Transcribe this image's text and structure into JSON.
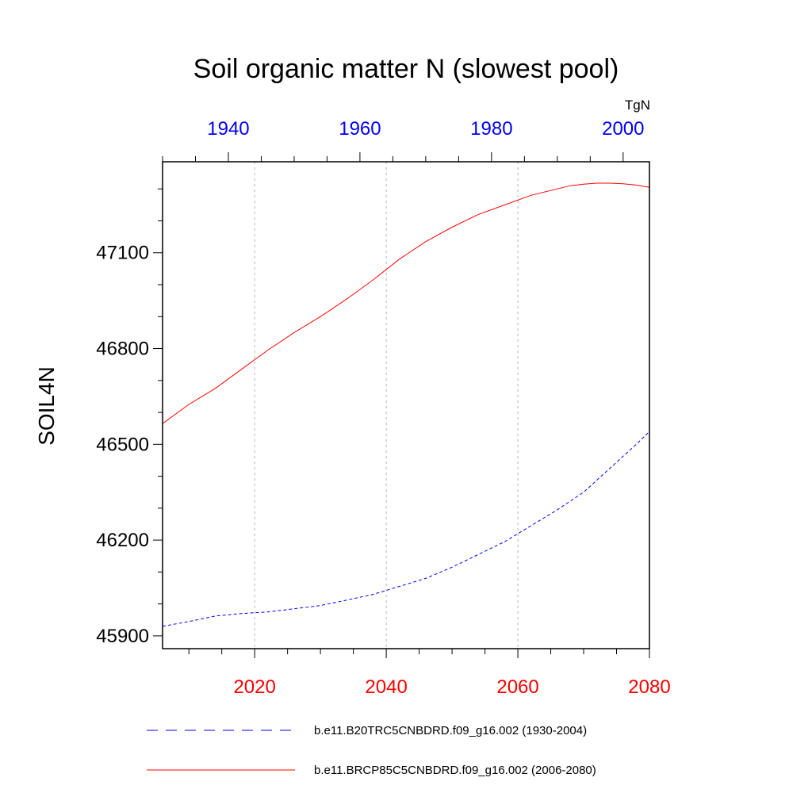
{
  "chart_data": {
    "type": "line",
    "title": "Soil organic matter N (slowest pool)",
    "units": "TgN",
    "ylabel": "SOIL4N",
    "ylim": [
      45860,
      47385
    ],
    "yticks": [
      45900,
      46200,
      46500,
      46800,
      47100
    ],
    "y_minor_step": 100,
    "bottom_axis": {
      "range": [
        2006,
        2080
      ],
      "ticks": [
        2020,
        2040,
        2060,
        2080
      ],
      "minor_step": 5,
      "color": "#ff0000"
    },
    "top_axis": {
      "range": [
        1930,
        2004
      ],
      "ticks": [
        1940,
        1960,
        1980,
        2000
      ],
      "minor_step": 5,
      "color": "#0000ff"
    },
    "gridlines_x": [
      2020,
      2040,
      2060
    ],
    "series": [
      {
        "name": "b.e11.B20TRC5CNBDRD.f09_g16.002 (1930-2004)",
        "axis": "top",
        "color": "#0000ff",
        "dash": "dashed",
        "x": [
          1930,
          1934,
          1938,
          1942,
          1946,
          1950,
          1954,
          1958,
          1962,
          1966,
          1970,
          1974,
          1978,
          1982,
          1986,
          1990,
          1994,
          1998,
          2002,
          2004
        ],
        "y": [
          45930,
          45945,
          45962,
          45970,
          45975,
          45985,
          45995,
          46012,
          46030,
          46055,
          46080,
          46115,
          46155,
          46195,
          46245,
          46295,
          46350,
          46425,
          46500,
          46540
        ]
      },
      {
        "name": "b.e11.BRCP85C5CNBDRD.f09_g16.002 (2006-2080)",
        "axis": "bottom",
        "color": "#ff0000",
        "dash": "solid",
        "x": [
          2006,
          2010,
          2014,
          2018,
          2022,
          2026,
          2030,
          2034,
          2038,
          2042,
          2046,
          2050,
          2054,
          2058,
          2062,
          2066,
          2068,
          2070,
          2072,
          2074,
          2076,
          2078,
          2080
        ],
        "y": [
          46565,
          46625,
          46675,
          46735,
          46795,
          46850,
          46900,
          46955,
          47015,
          47080,
          47135,
          47180,
          47220,
          47250,
          47280,
          47300,
          47310,
          47315,
          47318,
          47318,
          47316,
          47312,
          47305
        ]
      }
    ],
    "legend": {
      "position": "bottom",
      "entries": [
        "b.e11.B20TRC5CNBDRD.f09_g16.002 (1930-2004)",
        "b.e11.BRCP85C5CNBDRD.f09_g16.002 (2006-2080)"
      ]
    }
  }
}
